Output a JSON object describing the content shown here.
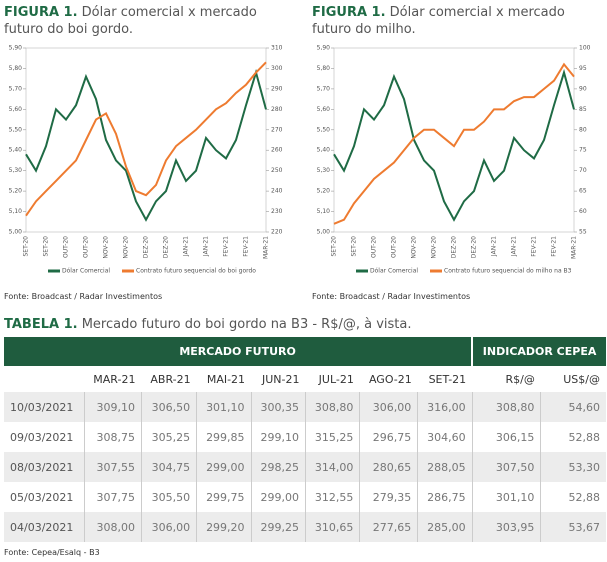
{
  "chart_data": [
    {
      "type": "line",
      "title_label": "FIGURA 1.",
      "title": "Dólar comercial x mercado futuro do boi gordo.",
      "categories": [
        "SET-20",
        null,
        "SET-20",
        null,
        "OUT-20",
        null,
        "OUT-20",
        null,
        "NOV-20",
        null,
        "NOV-20",
        null,
        "DEZ-20",
        null,
        "DEZ-20",
        null,
        "JAN-21",
        null,
        "JAN-21",
        null,
        "FEV-21",
        null,
        "FEV-21",
        null,
        "MAR-21"
      ],
      "ylim": [
        5.0,
        5.9
      ],
      "yticks": [
        {
          "value": 5.0,
          "label": "5,00"
        },
        {
          "value": 5.1,
          "label": "5,10"
        },
        {
          "value": 5.2,
          "label": "5,20"
        },
        {
          "value": 5.3,
          "label": "5,30"
        },
        {
          "value": 5.4,
          "label": "5,40"
        },
        {
          "value": 5.5,
          "label": "5,50"
        },
        {
          "value": 5.6,
          "label": "5,60"
        },
        {
          "value": 5.7,
          "label": "5,70"
        },
        {
          "value": 5.8,
          "label": "5,80"
        },
        {
          "value": 5.9,
          "label": "5,90"
        }
      ],
      "y2lim": [
        220,
        310
      ],
      "y2ticks": [
        220,
        230,
        240,
        250,
        260,
        270,
        280,
        290,
        300,
        310
      ],
      "series": [
        {
          "name": "Dólar Comercial",
          "color": "#1f6b45",
          "values": [
            5.38,
            5.3,
            5.42,
            5.6,
            5.55,
            5.62,
            5.76,
            5.65,
            5.45,
            5.35,
            5.3,
            5.15,
            5.06,
            5.15,
            5.2,
            5.35,
            5.25,
            5.3,
            5.46,
            5.4,
            5.36,
            5.45,
            5.62,
            5.78,
            5.6
          ]
        },
        {
          "name": "Contrato futuro sequencial do boi gordo",
          "color": "#ee7b30",
          "axis": "y2",
          "values": [
            228,
            235,
            240,
            245,
            250,
            255,
            265,
            275,
            278,
            268,
            252,
            240,
            238,
            243,
            255,
            262,
            266,
            270,
            275,
            280,
            283,
            288,
            292,
            298,
            303
          ]
        }
      ],
      "source": "Fonte: Broadcast / Radar Investimentos"
    },
    {
      "type": "line",
      "title_label": "FIGURA 1.",
      "title": "Dólar comercial x mercado futuro do milho.",
      "categories": [
        "SET-20",
        null,
        "SET-20",
        null,
        "OUT-20",
        null,
        "OUT-20",
        null,
        "NOV-20",
        null,
        "NOV-20",
        null,
        "DEZ-20",
        null,
        "DEZ-20",
        null,
        "JAN-21",
        null,
        "JAN-21",
        null,
        "FEV-21",
        null,
        "FEV-21",
        null,
        "MAR-21"
      ],
      "ylim": [
        5.0,
        5.9
      ],
      "yticks": [
        {
          "value": 5.0,
          "label": "5,00"
        },
        {
          "value": 5.1,
          "label": "5,10"
        },
        {
          "value": 5.2,
          "label": "5,20"
        },
        {
          "value": 5.3,
          "label": "5,30"
        },
        {
          "value": 5.4,
          "label": "5,40"
        },
        {
          "value": 5.5,
          "label": "5,50"
        },
        {
          "value": 5.6,
          "label": "5,60"
        },
        {
          "value": 5.7,
          "label": "5,70"
        },
        {
          "value": 5.8,
          "label": "5,80"
        },
        {
          "value": 5.9,
          "label": "5,90"
        }
      ],
      "y2lim": [
        55,
        100
      ],
      "y2ticks": [
        55,
        60,
        65,
        70,
        75,
        80,
        85,
        90,
        95,
        100
      ],
      "series": [
        {
          "name": "Dólar Comercial",
          "color": "#1f6b45",
          "values": [
            5.38,
            5.3,
            5.42,
            5.6,
            5.55,
            5.62,
            5.76,
            5.65,
            5.45,
            5.35,
            5.3,
            5.15,
            5.06,
            5.15,
            5.2,
            5.35,
            5.25,
            5.3,
            5.46,
            5.4,
            5.36,
            5.45,
            5.62,
            5.78,
            5.6
          ]
        },
        {
          "name": "Contrato futuro sequencial do milho na B3",
          "color": "#ee7b30",
          "axis": "y2",
          "values": [
            57,
            58,
            62,
            65,
            68,
            70,
            72,
            75,
            78,
            80,
            80,
            78,
            76,
            80,
            80,
            82,
            85,
            85,
            87,
            88,
            88,
            90,
            92,
            96,
            93
          ]
        }
      ],
      "source": "Fonte: Broadcast / Radar Investimentos"
    }
  ],
  "table": {
    "title_label": "TABELA 1.",
    "title": "Mercado futuro do boi gordo na B3 - R$/@, à vista.",
    "groups": [
      "MERCADO FUTURO",
      "INDICADOR CEPEA"
    ],
    "columns": [
      "MAR-21",
      "ABR-21",
      "MAI-21",
      "JUN-21",
      "JUL-21",
      "AGO-21",
      "SET-21",
      "R$/@",
      "US$/@"
    ],
    "rows": [
      [
        "10/03/2021",
        "309,10",
        "306,50",
        "301,10",
        "300,35",
        "308,80",
        "306,00",
        "316,00",
        "308,80",
        "54,60"
      ],
      [
        "09/03/2021",
        "308,75",
        "305,25",
        "299,85",
        "299,10",
        "315,25",
        "296,75",
        "304,60",
        "306,15",
        "52,88"
      ],
      [
        "08/03/2021",
        "307,55",
        "304,75",
        "299,00",
        "298,25",
        "314,00",
        "280,65",
        "288,05",
        "307,50",
        "53,30"
      ],
      [
        "05/03/2021",
        "307,75",
        "305,50",
        "299,75",
        "299,00",
        "312,55",
        "279,35",
        "286,75",
        "301,10",
        "52,88"
      ],
      [
        "04/03/2021",
        "308,00",
        "306,00",
        "299,20",
        "299,25",
        "310,65",
        "277,65",
        "285,00",
        "303,95",
        "53,67"
      ]
    ],
    "source": "Fonte: Cepea/Esalq - B3"
  }
}
